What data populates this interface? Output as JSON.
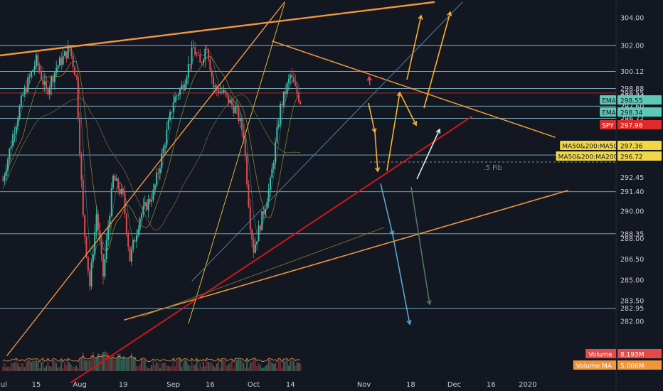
{
  "chart_data": {
    "type": "candlestick",
    "symbol": "SPY",
    "last_price": "297.98",
    "x_axis": {
      "labels": [
        "Jul",
        "15",
        "Aug",
        "19",
        "Sep",
        "16",
        "Oct",
        "14",
        "Nov",
        "18",
        "Dec",
        "16",
        "2020"
      ],
      "day_index": [
        0,
        10,
        23,
        36,
        51,
        62,
        75,
        86,
        108,
        122,
        135,
        146,
        157
      ]
    },
    "y_axis": {
      "ticks": [
        304.0,
        302.0,
        300.12,
        298.88,
        298.55,
        298.34,
        297.97,
        297.6,
        297.36,
        296.72,
        296.49,
        294.06,
        292.45,
        291.4,
        290.0,
        288.35,
        288.0,
        286.5,
        285.0,
        283.5,
        282.95,
        282.0
      ],
      "tick_labels": [
        "304.00",
        "302.00",
        "300.12",
        "298.88",
        "298.55",
        "298.34",
        "297.98",
        "297.60",
        "297.36",
        "296.72",
        "296.49",
        "294.06",
        "292.45",
        "291.40",
        "290.00",
        "288.35",
        "288.00",
        "286.50",
        "285.00",
        "283.50",
        "282.95",
        "282.00"
      ]
    },
    "horizontal_levels": [
      302.0,
      300.12,
      298.88,
      297.6,
      296.72,
      294.06,
      291.4,
      288.35,
      282.95
    ],
    "red_level": 298.55,
    "fib_level": {
      "value": 293.55,
      "label": ".5 Fib"
    },
    "price_tags": [
      {
        "label": "EMA",
        "value": "298.55",
        "color": "#5fc9b7",
        "text_color": "#131722"
      },
      {
        "label": "EMA",
        "value": "298.34",
        "color": "#5fc9b7",
        "text_color": "#131722"
      },
      {
        "label": "SPY",
        "value": "297.98",
        "color": "#e02a2a",
        "text_color": "#ffffff"
      },
      {
        "label": "MA50&200:MA50",
        "value": "297.36",
        "color": "#f2d646",
        "text_color": "#131722"
      },
      {
        "label": "MA50&200:MA200",
        "value": "296.72",
        "color": "#f2d646",
        "text_color": "#131722"
      }
    ],
    "volume_tags": [
      {
        "label": "Volume",
        "value": "8.193M",
        "color": "#e24a4a"
      },
      {
        "label": "Volume MA",
        "value": "5.006M",
        "color": "#f0963c"
      }
    ],
    "colors": {
      "background": "#131722",
      "up": "#3ec0a7",
      "down": "#e34b4b",
      "trendline": "#f0963c",
      "red_trend": "#d4141c",
      "level": "#8fd7e8",
      "arrow_orange": "#ffb02e",
      "arrow_blue": "#5aa6d6",
      "arrow_white": "#cfeee7"
    },
    "grid": false
  }
}
